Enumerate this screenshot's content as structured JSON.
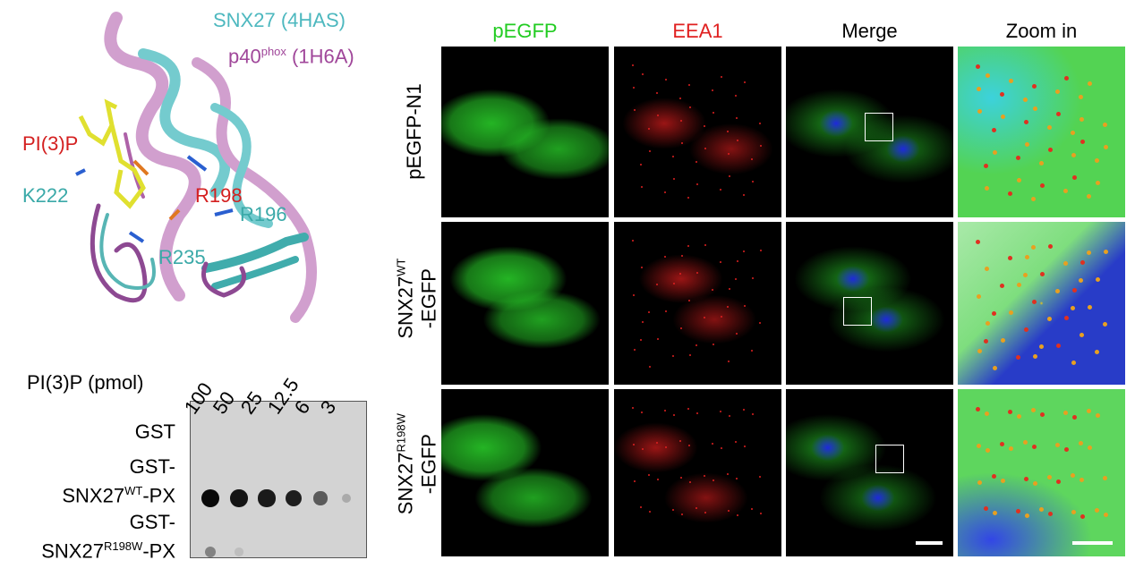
{
  "structure": {
    "legend": [
      {
        "text": "SNX27 (4HAS)",
        "color": "#4db8bf"
      },
      {
        "text": "p40",
        "sup": "phox",
        "suffix": " (1H6A)",
        "color": "#a0479a"
      }
    ],
    "labels": [
      {
        "text": "PI(3)P",
        "color": "#d42020"
      },
      {
        "text": "K222",
        "color": "#3aa9a8"
      },
      {
        "text": "R198",
        "color": "#d42020"
      },
      {
        "text": "R196",
        "color": "#3aa9a8"
      },
      {
        "text": "R235",
        "color": "#3aa9a8"
      }
    ]
  },
  "blot": {
    "axis_label": "PI(3)P (pmol)",
    "amounts": [
      "100",
      "50",
      "25",
      "12.5",
      "6",
      "3"
    ],
    "rows": [
      {
        "line1": "GST",
        "line2": "",
        "sup": "",
        "suffix": "",
        "intensity": [
          0,
          0,
          0,
          0,
          0,
          0
        ]
      },
      {
        "line1": "GST-",
        "line2": "SNX27",
        "sup": "WT",
        "suffix": "-PX",
        "intensity": [
          1.0,
          0.95,
          0.92,
          0.9,
          0.6,
          0.2
        ]
      },
      {
        "line1": "GST-",
        "line2": "SNX27",
        "sup": "R198W",
        "suffix": "-PX",
        "intensity": [
          0.4,
          0.1,
          0,
          0,
          0,
          0
        ]
      }
    ]
  },
  "microscopy": {
    "columns": [
      {
        "text": "pEGFP",
        "color": "#22cc22"
      },
      {
        "text": "EEA1",
        "color": "#e02020"
      },
      {
        "text": "Merge",
        "color": "#000000"
      },
      {
        "text": "Zoom in",
        "color": "#000000"
      }
    ],
    "rows": [
      {
        "text": "pEGFP-N1",
        "sup": "",
        "suffix": ""
      },
      {
        "text": "SNX27",
        "sup": "WT",
        "suffix": "-EGFP"
      },
      {
        "text": "SNX27",
        "sup": "R198W",
        "suffix": "-EGFP"
      }
    ]
  }
}
